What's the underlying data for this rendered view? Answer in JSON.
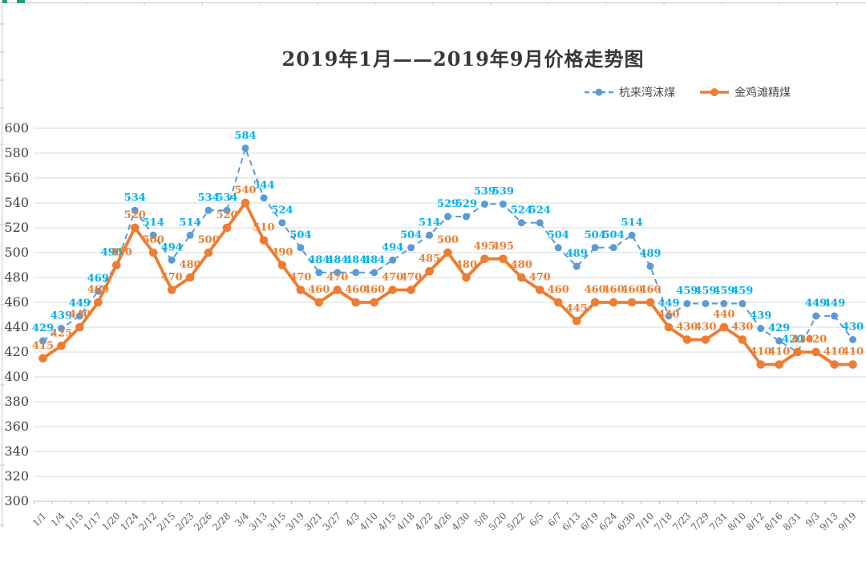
{
  "title": "2019年1月——2019年9月价格走势图",
  "legend": {
    "items": [
      {
        "label": "杭来湾沫煤",
        "color": "#5B9BD5",
        "style": "dashed"
      },
      {
        "label": "金鸡滩精煤",
        "color": "#ED7D31",
        "style": "solid"
      }
    ]
  },
  "axes": {
    "y_tick_labels": [
      "600",
      "580",
      "560",
      "540",
      "520",
      "500",
      "480",
      "460",
      "440",
      "420",
      "400",
      "380",
      "360",
      "340",
      "320",
      "300"
    ]
  },
  "chart_data": {
    "type": "line",
    "title": "2019年1月——2019年9月价格走势图",
    "categories": [
      "1/1",
      "1/4",
      "1/15",
      "1/17",
      "1/20",
      "1/24",
      "2/12",
      "2/15",
      "2/23",
      "2/26",
      "2/28",
      "3/4",
      "3/13",
      "3/15",
      "3/19",
      "3/21",
      "3/27",
      "4/3",
      "4/10",
      "4/15",
      "4/18",
      "4/22",
      "4/26",
      "4/30",
      "5/8",
      "5/20",
      "5/22",
      "6/5",
      "6/7",
      "6/13",
      "6/19",
      "6/24",
      "6/30",
      "7/10",
      "7/18",
      "7/23",
      "7/29",
      "7/31",
      "8/10",
      "8/12",
      "8/16",
      "8/31",
      "9/3",
      "9/13",
      "9/19"
    ],
    "series": [
      {
        "name": "杭来湾沫煤",
        "line_color": "#5B9BD5",
        "label_color": "#00B0F0",
        "line_style": "dashed",
        "values": [
          429,
          439,
          449,
          469,
          490,
          534,
          514,
          494,
          514,
          534,
          534,
          584,
          544,
          524,
          504,
          484,
          484,
          484,
          484,
          494,
          504,
          514,
          529,
          529,
          539,
          539,
          524,
          524,
          504,
          489,
          504,
          504,
          514,
          489,
          449,
          459,
          459,
          459,
          459,
          439,
          429,
          420,
          449,
          449,
          430
        ]
      },
      {
        "name": "金鸡滩精煤",
        "line_color": "#ED7D31",
        "label_color": "#ED7D31",
        "line_style": "solid",
        "values": [
          415,
          425,
          440,
          460,
          490,
          520,
          500,
          470,
          480,
          500,
          520,
          540,
          510,
          490,
          470,
          460,
          470,
          460,
          460,
          470,
          470,
          485,
          500,
          480,
          495,
          495,
          480,
          470,
          460,
          445,
          460,
          460,
          460,
          460,
          440,
          430,
          430,
          440,
          430,
          410,
          410,
          420,
          420,
          410,
          410
        ]
      }
    ],
    "ylim": [
      300,
      600
    ],
    "ytick_step": 20,
    "grid": true,
    "data_labels": true,
    "legend_position": "top-right",
    "xlabel": "",
    "ylabel": ""
  },
  "colors": {
    "gridline": "#D9D9D9",
    "axis_line": "#BFBFBF",
    "y_tick_text": "#404040",
    "x_tick_text": "#595959",
    "sheet_edge": "#C9C9C9",
    "sheet_accent_green": "#21A366"
  }
}
